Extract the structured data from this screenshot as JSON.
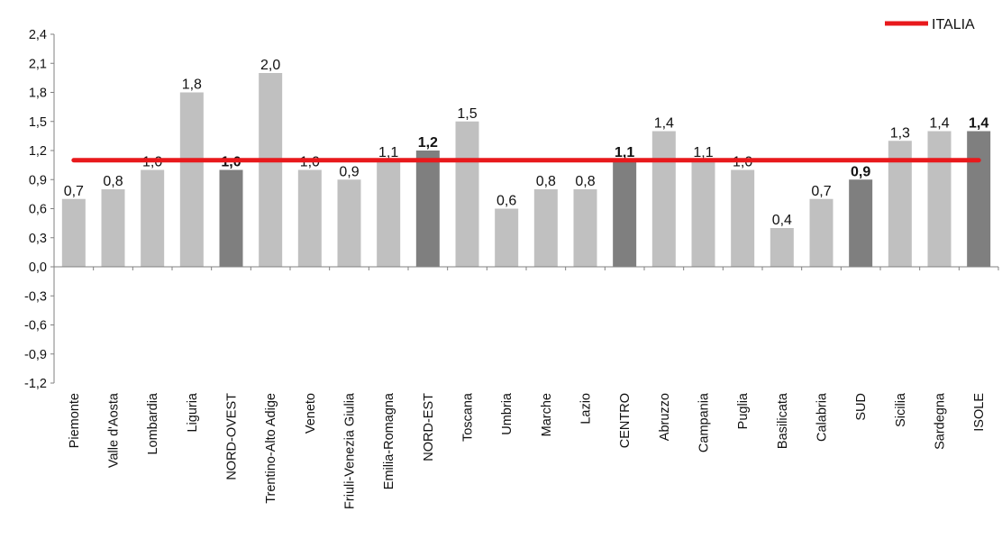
{
  "chart_data": {
    "type": "bar",
    "title": "",
    "xlabel": "",
    "ylabel": "",
    "ylim": [
      -1.2,
      2.4
    ],
    "y_ticks": [
      "2,4",
      "2,1",
      "1,8",
      "1,5",
      "1,2",
      "0,9",
      "0,6",
      "0,3",
      "0,0",
      "-0,3",
      "-0,6",
      "-0,9",
      "-1,2"
    ],
    "y_tick_values": [
      2.4,
      2.1,
      1.8,
      1.5,
      1.2,
      0.9,
      0.6,
      0.3,
      0.0,
      -0.3,
      -0.6,
      -0.9,
      -1.2
    ],
    "grid": false,
    "legend_position": "top-right",
    "categories": [
      "Piemonte",
      "Valle d'Aosta",
      "Lombardia",
      "Liguria",
      "NORD-OVEST",
      "Trentino-Alto Adige",
      "Veneto",
      "Friuli-Venezia Giulia",
      "Emilia-Romagna",
      "NORD-EST",
      "Toscana",
      "Umbria",
      "Marche",
      "Lazio",
      "CENTRO",
      "Abruzzo",
      "Campania",
      "Puglia",
      "Basilicata",
      "Calabria",
      "SUD",
      "Sicilia",
      "Sardegna",
      "ISOLE"
    ],
    "values": [
      0.7,
      0.8,
      1.0,
      1.8,
      1.0,
      2.0,
      1.0,
      0.9,
      1.1,
      1.2,
      1.5,
      0.6,
      0.8,
      0.8,
      1.1,
      1.4,
      1.1,
      1.0,
      0.4,
      0.7,
      0.9,
      1.3,
      1.4,
      1.4
    ],
    "value_labels": [
      "0,7",
      "0,8",
      "1,0",
      "1,8",
      "1,0",
      "2,0",
      "1,0",
      "0,9",
      "1,1",
      "1,2",
      "1,5",
      "0,6",
      "0,8",
      "0,8",
      "1,1",
      "1,4",
      "1,1",
      "1,0",
      "0,4",
      "0,7",
      "0,9",
      "1,3",
      "1,4",
      "1,4"
    ],
    "is_aggregate": [
      false,
      false,
      false,
      false,
      true,
      false,
      false,
      false,
      false,
      true,
      false,
      false,
      false,
      false,
      true,
      false,
      false,
      false,
      false,
      false,
      true,
      false,
      false,
      true
    ],
    "reference_line": {
      "name": "ITALIA",
      "value": 1.1
    },
    "colors": {
      "region_bar": "#c0c0c0",
      "aggregate_bar": "#7f7f7f",
      "reference_line": "#e8191c",
      "axis": "#808080",
      "text": "#111111"
    }
  }
}
